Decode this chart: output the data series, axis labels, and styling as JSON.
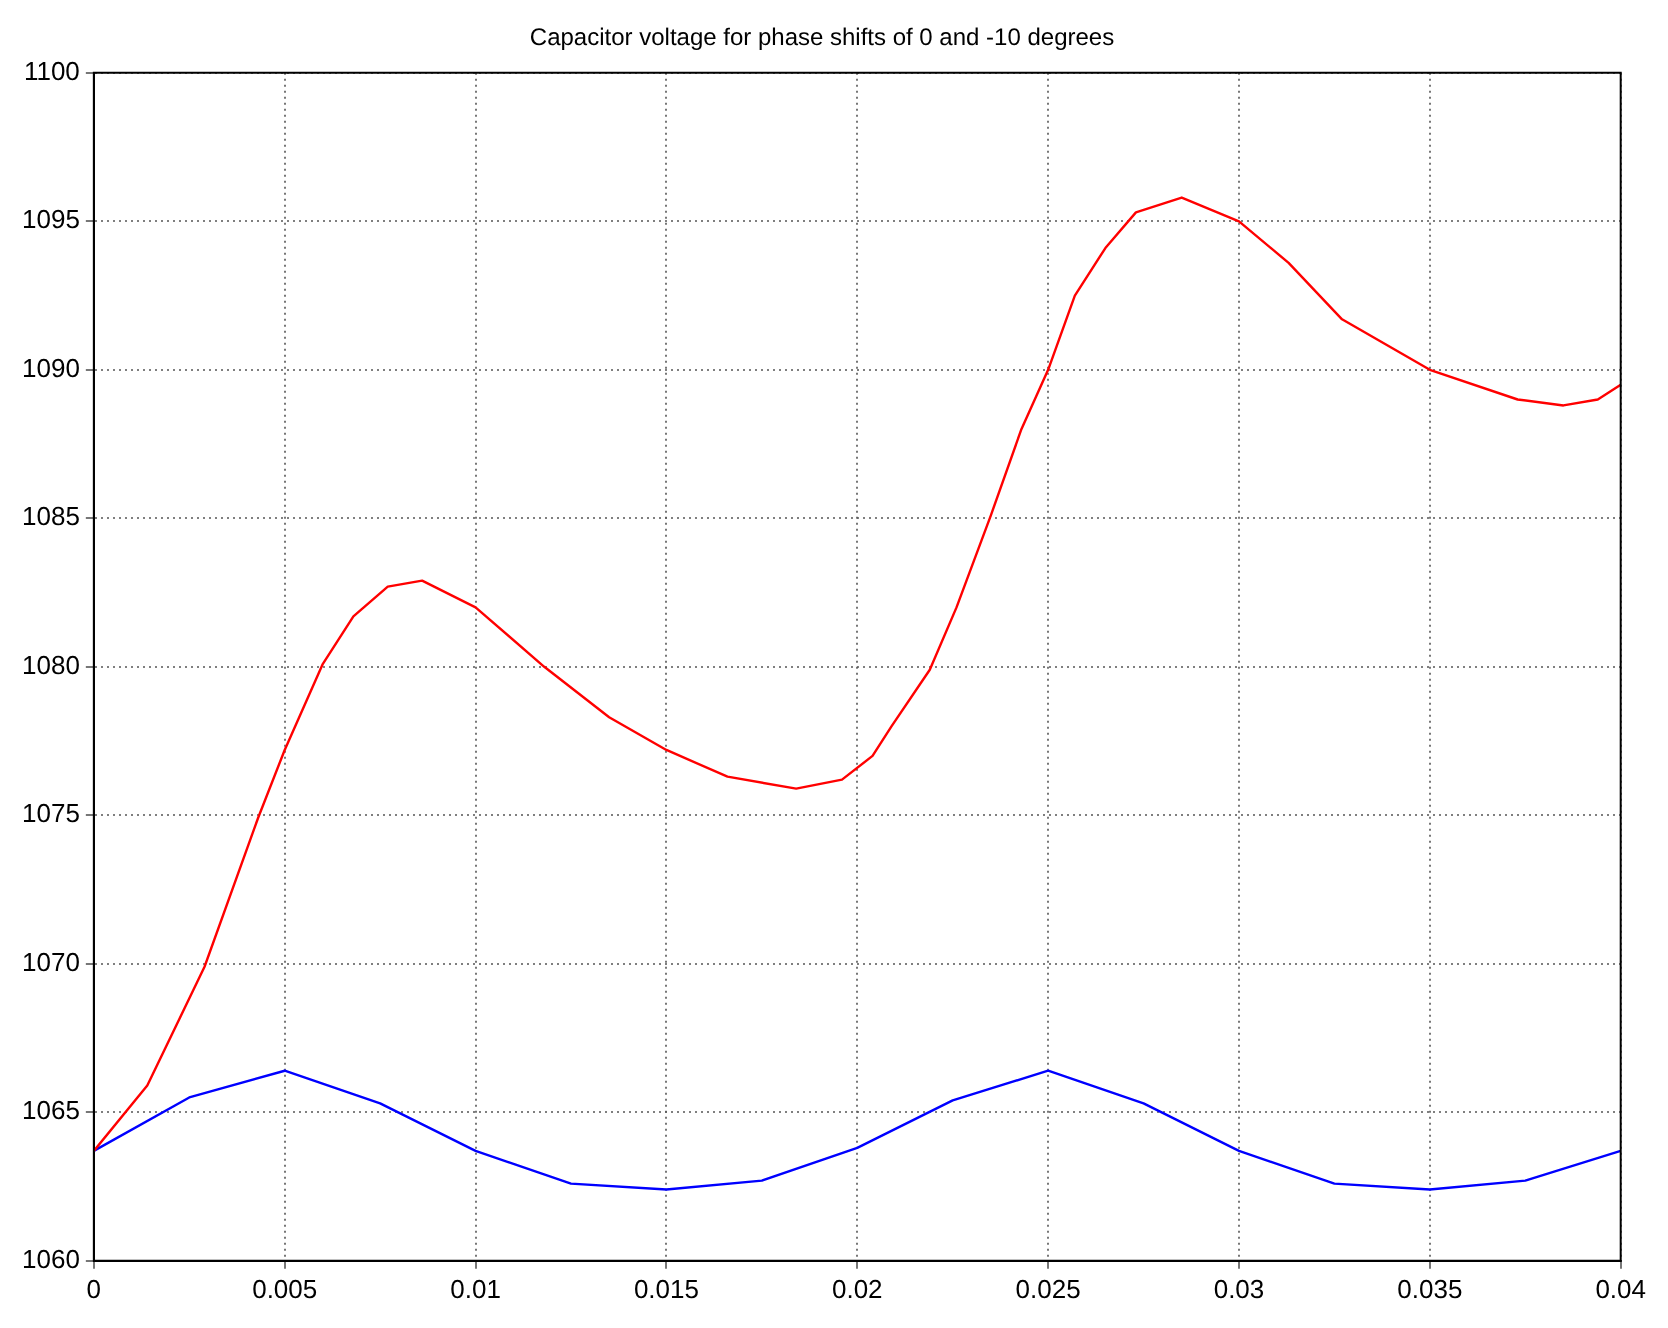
{
  "chart_data": {
    "type": "line",
    "title": "Capacitor voltage for phase shifts of 0 and -10 degrees",
    "xlim": [
      0,
      0.04
    ],
    "xticks": [
      0,
      0.005,
      0.01,
      0.015,
      0.02,
      0.025,
      0.03,
      0.035,
      0.04
    ],
    "ylim": [
      1060,
      1100
    ],
    "yticks": [
      1060,
      1065,
      1070,
      1075,
      1080,
      1085,
      1090,
      1095,
      1100
    ],
    "grid": true,
    "marker": "none",
    "line_style": "solid",
    "series": [
      {
        "color": "#ff0000",
        "x": [
          0,
          0.0014,
          0.0029,
          0.0043,
          0.005,
          0.006,
          0.0068,
          0.0077,
          0.0086,
          0.01,
          0.0118,
          0.0135,
          0.015,
          0.0166,
          0.0184,
          0.0196,
          0.0204,
          0.0209,
          0.0219,
          0.0226,
          0.0235,
          0.0243,
          0.025,
          0.0257,
          0.0265,
          0.0273,
          0.0285,
          0.03,
          0.0313,
          0.0327,
          0.035,
          0.0373,
          0.0385,
          0.0394,
          0.04
        ],
        "values": [
          1063.7,
          1065.9,
          1069.9,
          1074.9,
          1077.2,
          1080.1,
          1081.7,
          1082.7,
          1082.9,
          1082,
          1080,
          1078.3,
          1077.2,
          1076.3,
          1075.9,
          1076.2,
          1077,
          1078,
          1079.9,
          1082,
          1085.1,
          1088,
          1090,
          1092.5,
          1094.1,
          1095.3,
          1095.8,
          1095,
          1093.6,
          1091.7,
          1090,
          1089,
          1088.8,
          1089,
          1089.5
        ]
      },
      {
        "color": "#0000ff",
        "x": [
          0,
          0.0025,
          0.005,
          0.0075,
          0.01,
          0.0125,
          0.015,
          0.0175,
          0.02,
          0.0225,
          0.025,
          0.0275,
          0.03,
          0.0325,
          0.035,
          0.0375,
          0.04
        ],
        "values": [
          1063.7,
          1065.5,
          1066.4,
          1065.3,
          1063.7,
          1062.6,
          1062.4,
          1062.7,
          1063.8,
          1065.4,
          1066.4,
          1065.3,
          1063.7,
          1062.6,
          1062.4,
          1062.7,
          1063.7
        ]
      }
    ]
  }
}
